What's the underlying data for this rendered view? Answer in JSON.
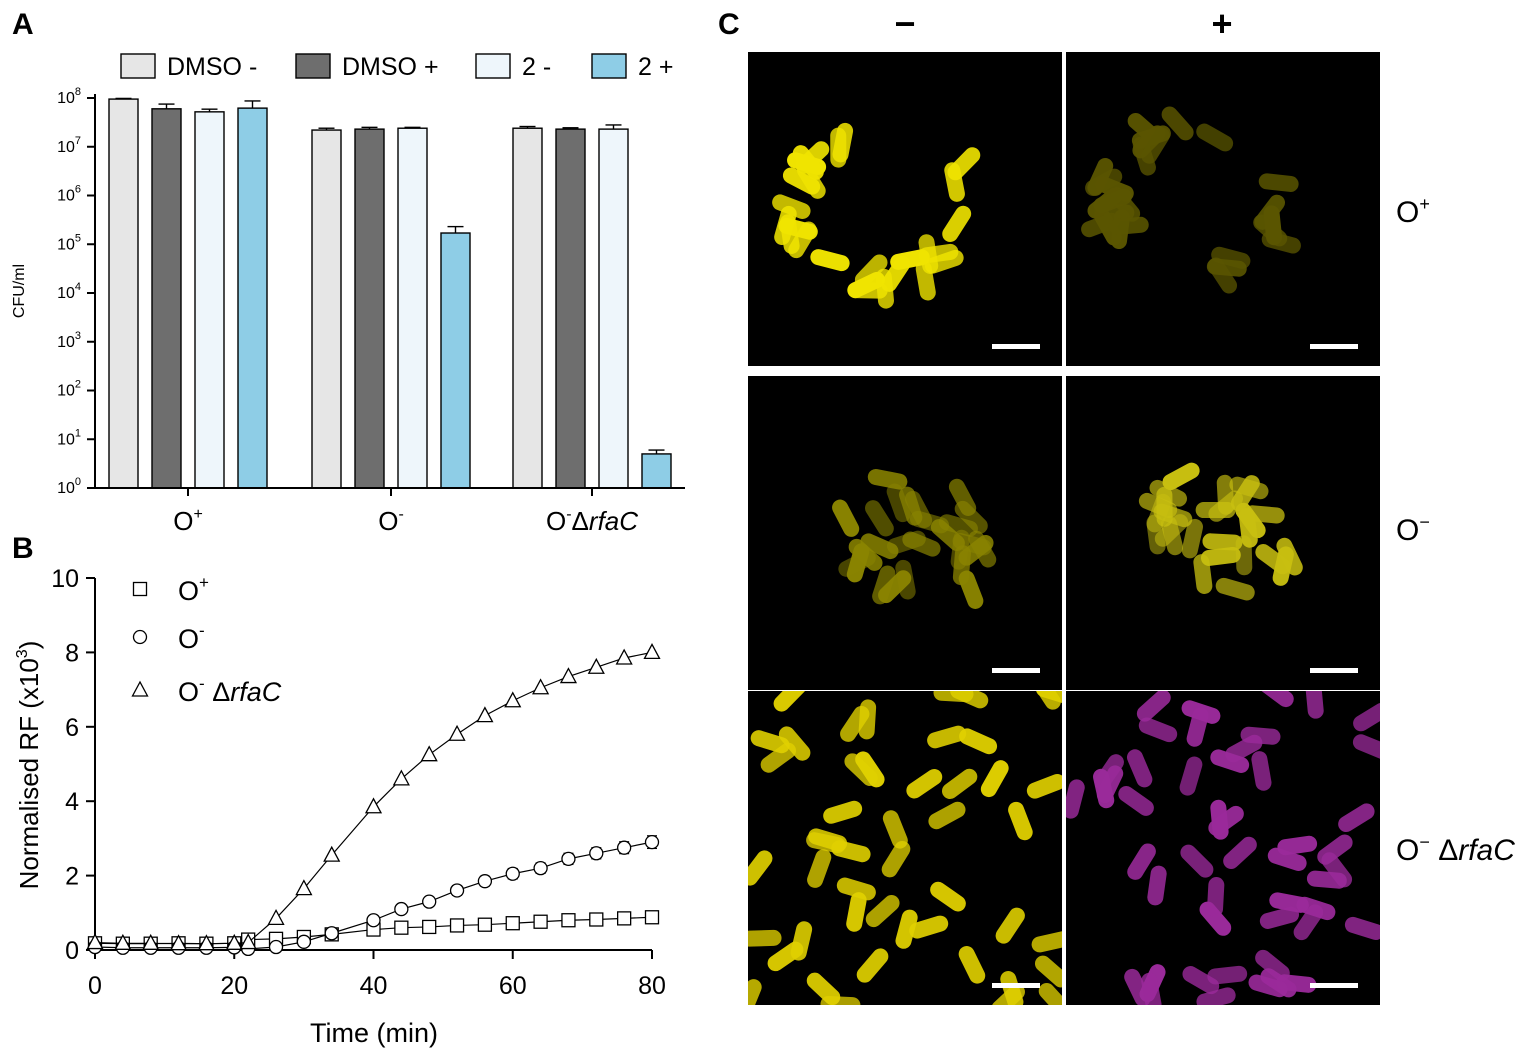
{
  "panels": {
    "a": {
      "letter": "A"
    },
    "b": {
      "letter": "B"
    },
    "c": {
      "letter": "C"
    }
  },
  "chart_data": [
    {
      "type": "bar",
      "panel": "A",
      "ylabel": "CFU/ml",
      "yscale": "log",
      "ylim": [
        1,
        100000000
      ],
      "yticks": [
        {
          "base": "10",
          "exp": "0"
        },
        {
          "base": "10",
          "exp": "1"
        },
        {
          "base": "10",
          "exp": "2"
        },
        {
          "base": "10",
          "exp": "3"
        },
        {
          "base": "10",
          "exp": "4"
        },
        {
          "base": "10",
          "exp": "5"
        },
        {
          "base": "10",
          "exp": "6"
        },
        {
          "base": "10",
          "exp": "7"
        },
        {
          "base": "10",
          "exp": "8"
        }
      ],
      "categories": [
        {
          "main": "O",
          "sup": "+",
          "italic": ""
        },
        {
          "main": "O",
          "sup": "-",
          "italic": ""
        },
        {
          "main": "O",
          "sup": "-",
          "main2": "Δ",
          "italic": "rfaC"
        }
      ],
      "legend_position": "top",
      "series": [
        {
          "name": "DMSO -",
          "color": "#e6e6e6",
          "values": [
            95000000,
            22000000,
            24000000
          ],
          "errors": [
            3000000,
            2000000,
            2000000
          ]
        },
        {
          "name": "DMSO +",
          "color": "#6e6e6e",
          "values": [
            60000000,
            23000000,
            23000000
          ],
          "errors": [
            15000000,
            2000000,
            1500000
          ]
        },
        {
          "name": "2 -",
          "color": "#eef6fb",
          "values": [
            52000000,
            24000000,
            23000000
          ],
          "errors": [
            7000000,
            1000000,
            5000000
          ]
        },
        {
          "name": "2 +",
          "color": "#8ecde6",
          "values": [
            62000000,
            170000,
            5
          ],
          "errors": [
            25000000,
            60000,
            1
          ]
        }
      ]
    },
    {
      "type": "line",
      "panel": "B",
      "xlabel": "Time (min)",
      "ylabel_main": "Normalised RF (x10",
      "ylabel_sup": "3",
      "ylabel_end": ")",
      "xlim": [
        0,
        80
      ],
      "ylim": [
        0,
        10
      ],
      "xticks": [
        "0",
        "20",
        "40",
        "60",
        "80"
      ],
      "yticks": [
        "0",
        "2",
        "4",
        "6",
        "8",
        "10"
      ],
      "legend_position": "top-left",
      "series": [
        {
          "name": "O+",
          "label_main": "O",
          "label_sup": "+",
          "label_italic": "",
          "marker": "square",
          "x": [
            0,
            4,
            8,
            12,
            16,
            20,
            22,
            26,
            30,
            34,
            40,
            44,
            48,
            52,
            56,
            60,
            64,
            68,
            72,
            76,
            80
          ],
          "y": [
            0.18,
            0.17,
            0.17,
            0.18,
            0.17,
            0.18,
            0.28,
            0.3,
            0.35,
            0.42,
            0.55,
            0.6,
            0.62,
            0.66,
            0.68,
            0.72,
            0.76,
            0.8,
            0.82,
            0.85,
            0.88
          ]
        },
        {
          "name": "O-",
          "label_main": "O",
          "label_sup": "-",
          "label_italic": "",
          "marker": "circle",
          "x": [
            0,
            4,
            8,
            12,
            16,
            20,
            22,
            26,
            30,
            34,
            40,
            44,
            48,
            52,
            56,
            60,
            64,
            68,
            72,
            76,
            80
          ],
          "y": [
            0.08,
            0.06,
            0.06,
            0.06,
            0.06,
            0.07,
            0.03,
            0.08,
            0.22,
            0.45,
            0.8,
            1.1,
            1.3,
            1.6,
            1.85,
            2.05,
            2.2,
            2.45,
            2.6,
            2.75,
            2.9
          ],
          "errors": [
            0.05,
            0.05,
            0.05,
            0.05,
            0.05,
            0.05,
            0.05,
            0.05,
            0.05,
            0.06,
            0.1,
            0.12,
            0.12,
            0.13,
            0.13,
            0.14,
            0.14,
            0.15,
            0.15,
            0.16,
            0.17
          ]
        },
        {
          "name": "O- ΔrfaC",
          "label_main": "O",
          "label_sup": "-",
          "label_italic": "rfaC",
          "marker": "triangle",
          "x": [
            0,
            4,
            8,
            12,
            16,
            20,
            22,
            26,
            30,
            34,
            40,
            44,
            48,
            52,
            56,
            60,
            64,
            68,
            72,
            76,
            80
          ],
          "y": [
            0.2,
            0.18,
            0.18,
            0.17,
            0.17,
            0.18,
            0.2,
            0.85,
            1.65,
            2.55,
            3.85,
            4.6,
            5.25,
            5.8,
            6.3,
            6.7,
            7.05,
            7.35,
            7.6,
            7.85,
            8.0
          ]
        }
      ]
    }
  ],
  "microscopy": {
    "column_headers": [
      "−",
      "+"
    ],
    "row_labels": [
      {
        "main": "O",
        "sup": "+",
        "italic": ""
      },
      {
        "main": "O",
        "sup": "−",
        "italic": ""
      },
      {
        "main": "O",
        "sup": "−",
        "space": " Δ",
        "italic": "rfaC"
      }
    ],
    "background": "#000000",
    "yellow": "#e6e000",
    "magenta": "#a020a0",
    "scale_bar_color": "#ffffff"
  }
}
